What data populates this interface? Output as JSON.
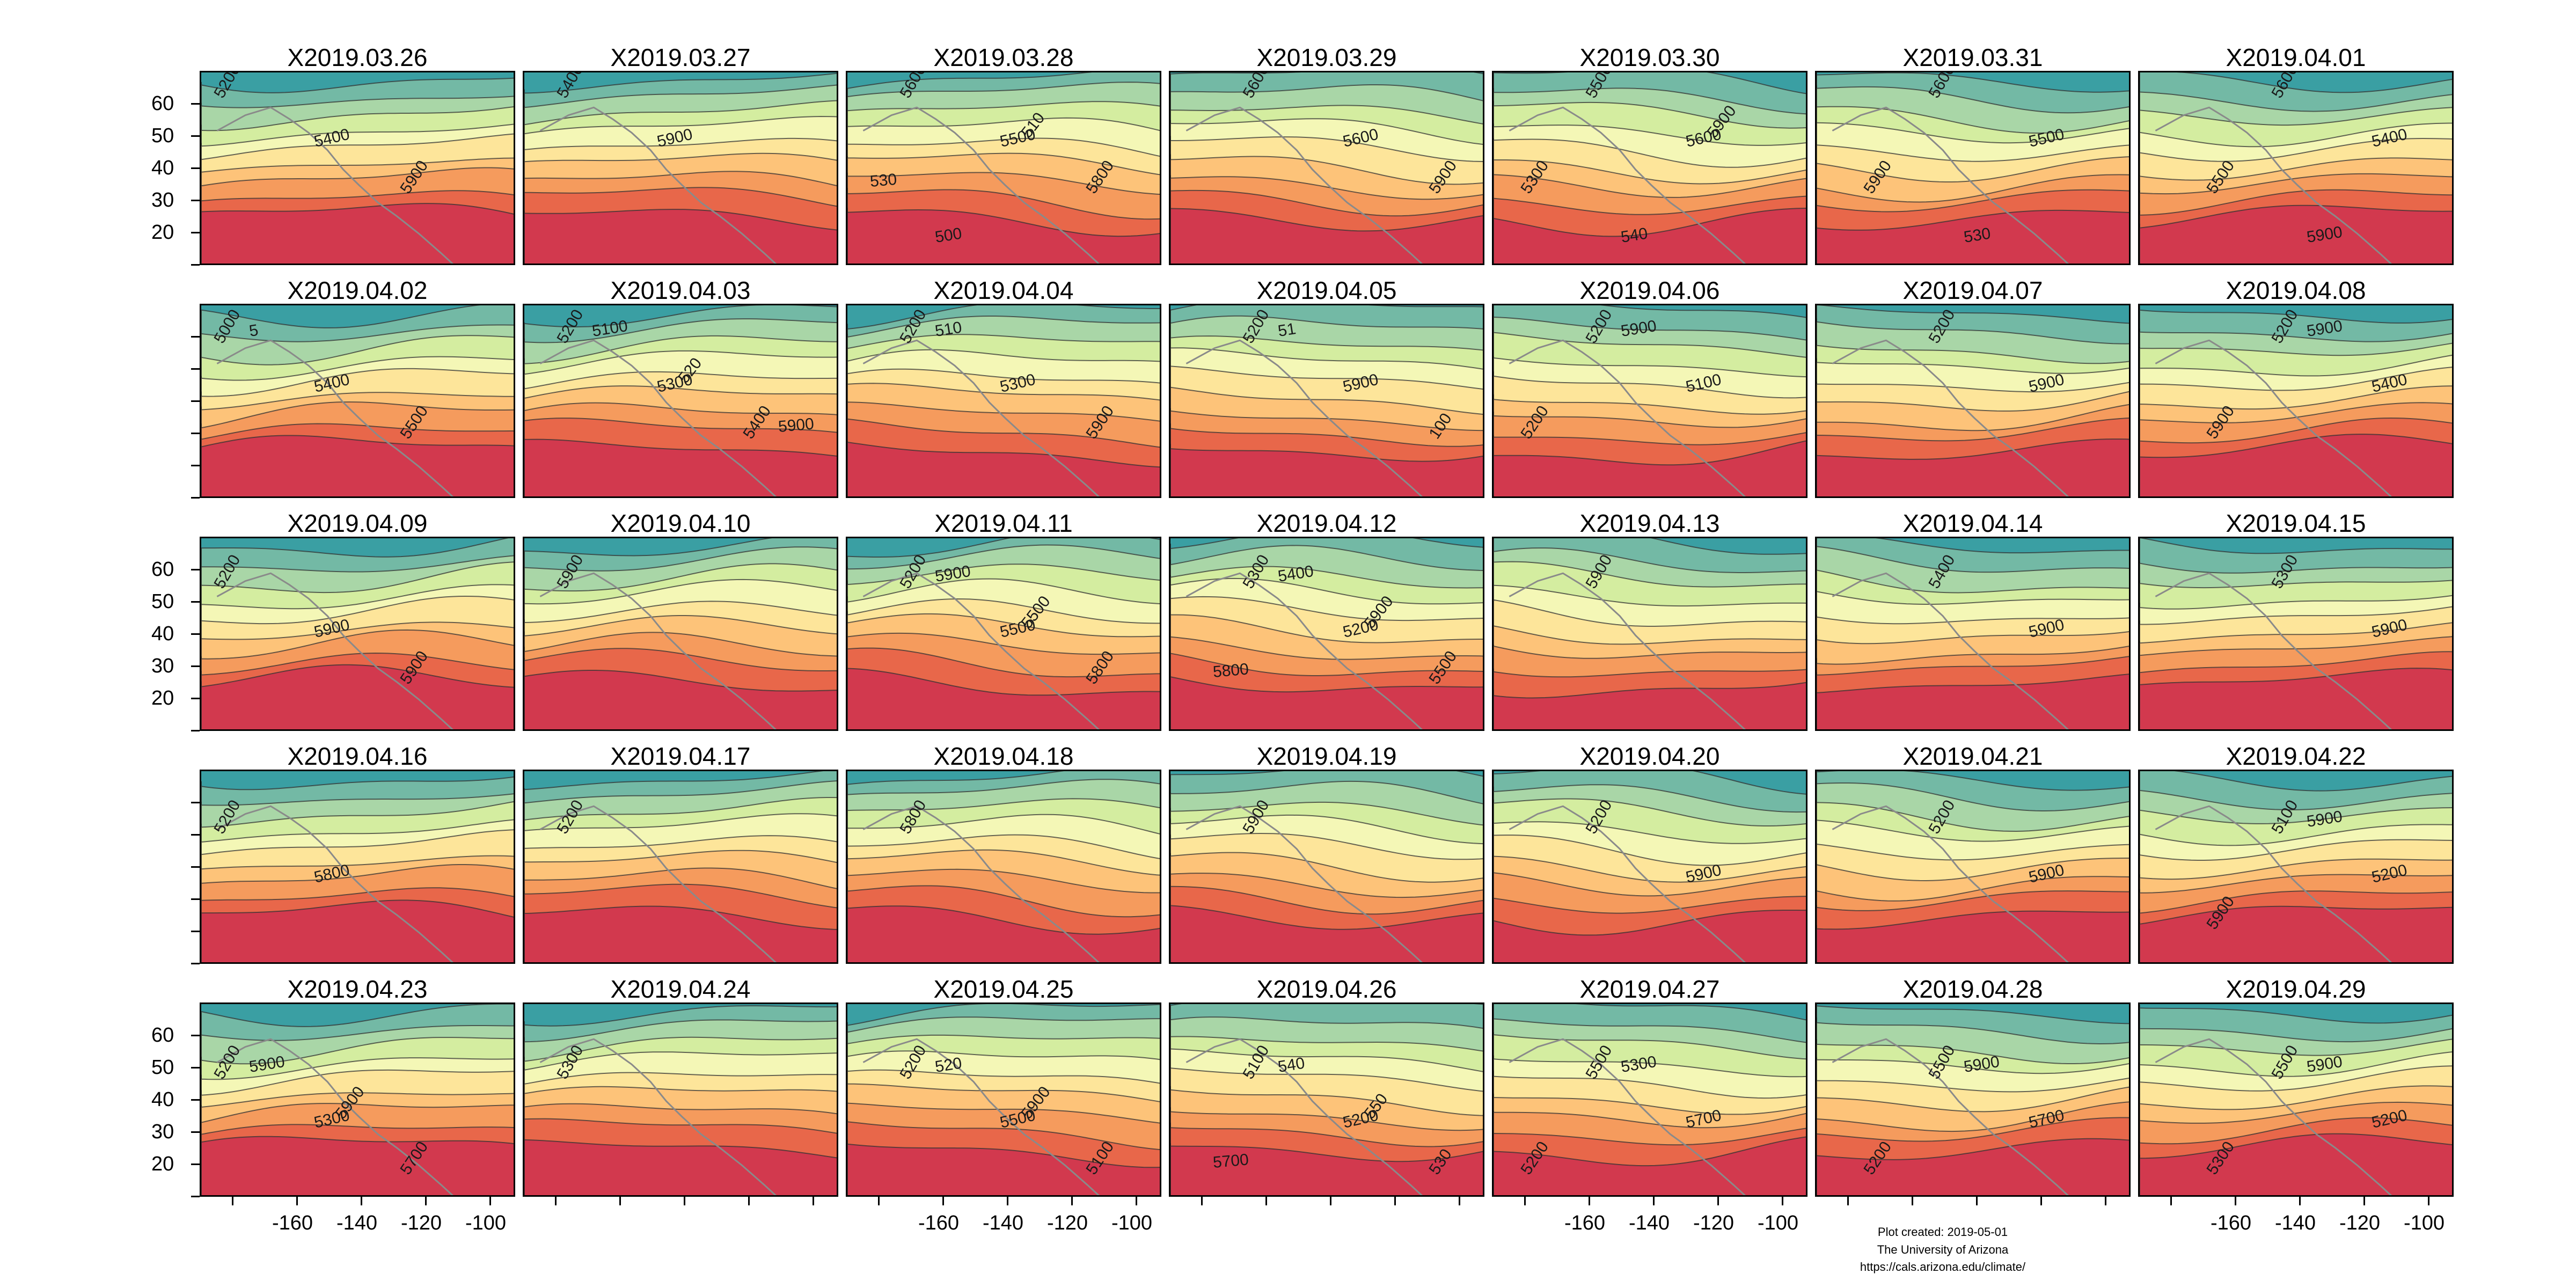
{
  "figure": {
    "panel_dates": [
      [
        "X2019.03.26",
        "X2019.03.27",
        "X2019.03.28",
        "X2019.03.29",
        "X2019.03.30",
        "X2019.03.31",
        "X2019.04.01"
      ],
      [
        "X2019.04.02",
        "X2019.04.03",
        "X2019.04.04",
        "X2019.04.05",
        "X2019.04.06",
        "X2019.04.07",
        "X2019.04.08"
      ],
      [
        "X2019.04.09",
        "X2019.04.10",
        "X2019.04.11",
        "X2019.04.12",
        "X2019.04.13",
        "X2019.04.14",
        "X2019.04.15"
      ],
      [
        "X2019.04.16",
        "X2019.04.17",
        "X2019.04.18",
        "X2019.04.19",
        "X2019.04.20",
        "X2019.04.21",
        "X2019.04.22"
      ],
      [
        "X2019.04.23",
        "X2019.04.24",
        "X2019.04.25",
        "X2019.04.26",
        "X2019.04.27",
        "X2019.04.28",
        "X2019.04.29"
      ]
    ],
    "y_ticks": [
      "60",
      "50",
      "40",
      "30",
      "20"
    ],
    "x_ticks": [
      "-160",
      "-140",
      "-120",
      "-100"
    ],
    "color_bands": [
      "#3a9fa3",
      "#73b9a5",
      "#a9d6a7",
      "#d4eda0",
      "#f4f7b6",
      "#fde59a",
      "#fdc379",
      "#f59b5d",
      "#e8674a",
      "#d2394e"
    ],
    "contour_labels": {
      "r0c0": [
        "5200",
        "5400",
        "5900"
      ],
      "r0c1": [
        "5400",
        "5900"
      ],
      "r0c2": [
        "5600",
        "5500",
        "5800",
        "500",
        "510",
        "530"
      ],
      "r0c3": [
        "5600",
        "5600",
        "5900"
      ],
      "r0c4": [
        "5500",
        "5600",
        "5300",
        "540",
        "5900"
      ],
      "r0c5": [
        "5600",
        "5500",
        "5900",
        "530"
      ],
      "r0c6": [
        "5600",
        "5400",
        "5500",
        "5900"
      ],
      "r1c0": [
        "5000",
        "5400",
        "5500",
        "5"
      ],
      "r1c1": [
        "5200",
        "5300",
        "5400",
        "5100",
        "520",
        "5900"
      ],
      "r1c2": [
        "5200",
        "5300",
        "5900",
        "510"
      ],
      "r1c3": [
        "5200",
        "5900",
        "100",
        "51"
      ],
      "r1c4": [
        "5200",
        "5100",
        "5200",
        "5900"
      ],
      "r1c5": [
        "5200",
        "5900"
      ],
      "r1c6": [
        "5200",
        "5400",
        "5900",
        "5900"
      ],
      "r2c0": [
        "5200",
        "5900",
        "5900"
      ],
      "r2c1": [
        "5900"
      ],
      "r2c2": [
        "5200",
        "5500",
        "5800",
        "5900",
        "5500"
      ],
      "r2c3": [
        "5300",
        "5200",
        "5500",
        "5400",
        "5900",
        "5800"
      ],
      "r2c4": [
        "5900"
      ],
      "r2c5": [
        "5400",
        "5900"
      ],
      "r2c6": [
        "5300",
        "5900"
      ],
      "r3c0": [
        "5200",
        "5800"
      ],
      "r3c1": [
        "5200"
      ],
      "r3c2": [
        "5800"
      ],
      "r3c3": [
        "5900"
      ],
      "r3c4": [
        "5200",
        "5900"
      ],
      "r3c5": [
        "5200",
        "5900"
      ],
      "r3c6": [
        "5100",
        "5200",
        "5900",
        "5900"
      ],
      "r4c0": [
        "5200",
        "5300",
        "5700",
        "5900",
        "5900"
      ],
      "r4c1": [
        "5300"
      ],
      "r4c2": [
        "5200",
        "5500",
        "5100",
        "520",
        "5900"
      ],
      "r4c3": [
        "5100",
        "5200",
        "530",
        "540",
        "550",
        "5700"
      ],
      "r4c4": [
        "5500",
        "5700",
        "5200",
        "5300"
      ],
      "r4c5": [
        "5500",
        "5700",
        "5200",
        "5900"
      ],
      "r4c6": [
        "5500",
        "5200",
        "5300",
        "5900"
      ]
    },
    "credit": {
      "line1": "Plot created: 2019-05-01",
      "line2": "The University of Arizona",
      "line3": "https://cals.arizona.edu/climate/"
    }
  }
}
